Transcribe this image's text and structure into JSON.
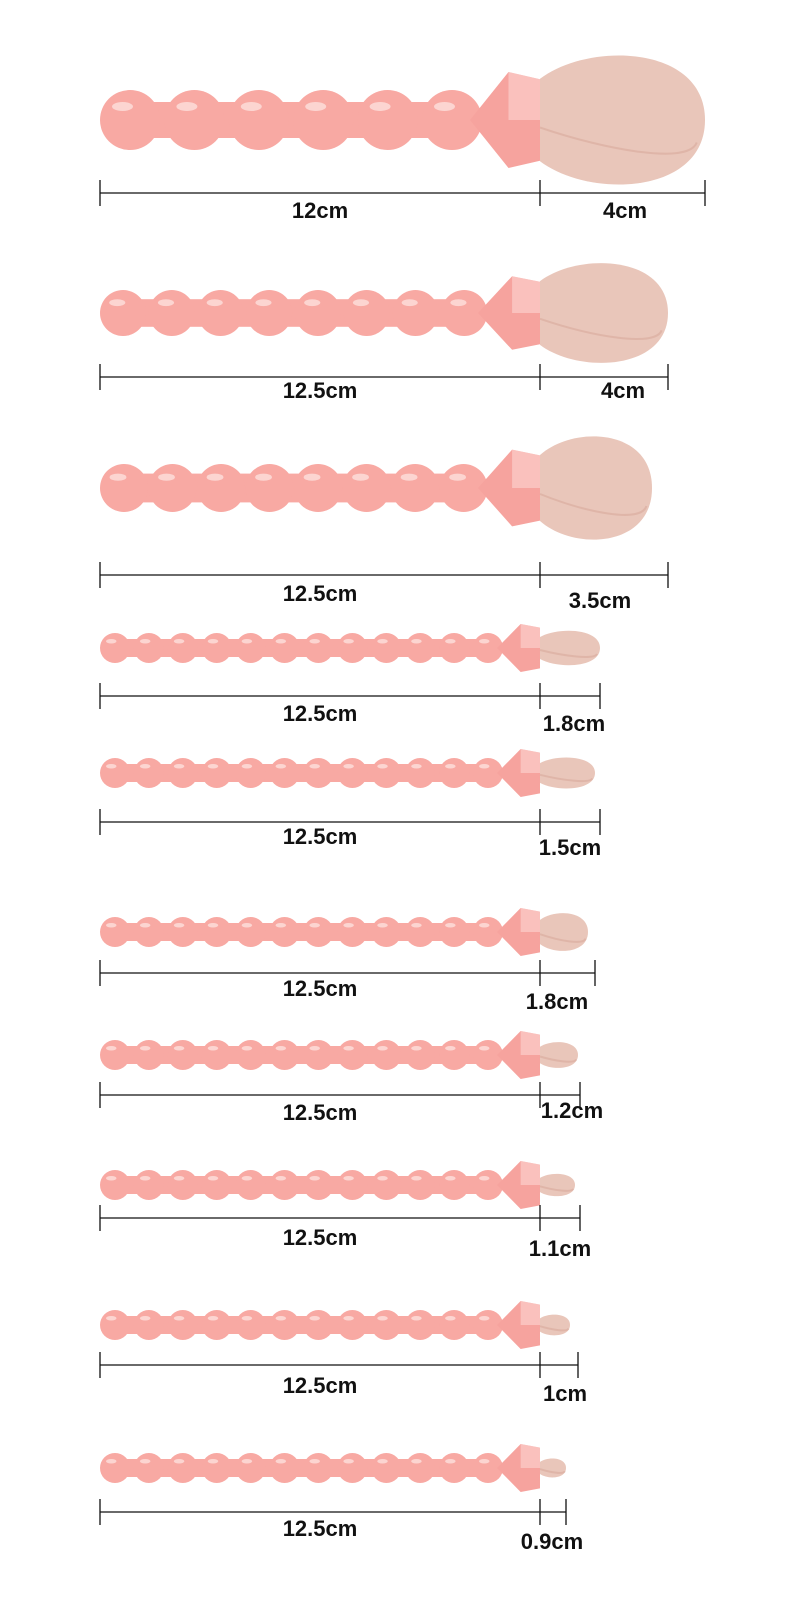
{
  "colors": {
    "handle": "#f8a9a3",
    "handle_highlight": "#fde0dc",
    "ferrule": "#f6a39e",
    "bristle": "#e9c6ba",
    "bristle_shadow": "#d9aa9c",
    "dimension_line": "#111111"
  },
  "brushes": [
    {
      "handle_length": "12cm",
      "head_length": "4cm"
    },
    {
      "handle_length": "12.5cm",
      "head_length": "4cm"
    },
    {
      "handle_length": "12.5cm",
      "head_length": "3.5cm"
    },
    {
      "handle_length": "12.5cm",
      "head_length": "1.8cm"
    },
    {
      "handle_length": "12.5cm",
      "head_length": "1.5cm"
    },
    {
      "handle_length": "12.5cm",
      "head_length": "1.8cm"
    },
    {
      "handle_length": "12.5cm",
      "head_length": "1.2cm"
    },
    {
      "handle_length": "12.5cm",
      "head_length": "1.1cm"
    },
    {
      "handle_length": "12.5cm",
      "head_length": "1cm"
    },
    {
      "handle_length": "12.5cm",
      "head_length": "0.9cm"
    }
  ]
}
